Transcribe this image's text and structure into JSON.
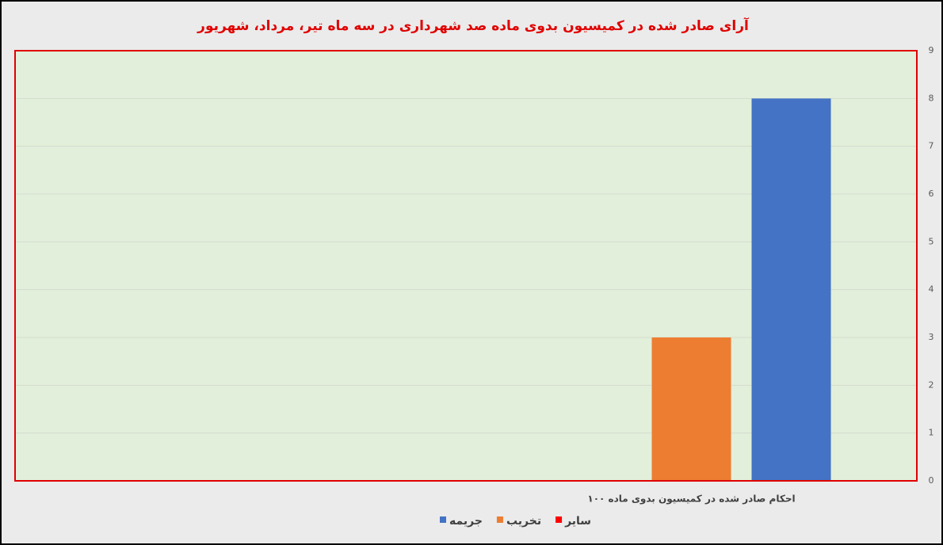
{
  "chart_data": {
    "type": "bar",
    "title": "آرای صادر شده در کمیسیون بدوی ماده صد شهرداری در سه ماه تیر، مرداد، شهریور",
    "categories": [
      null,
      "احکام صادر شده در کمیسیون بدوی ماده ۱۰۰"
    ],
    "series": [
      {
        "name": "جریمه",
        "color": "#4472c4",
        "values": [
          null,
          8
        ]
      },
      {
        "name": "تخریب",
        "color": "#ed7d31",
        "values": [
          null,
          3
        ]
      },
      {
        "name": "سایر",
        "color": "#ff0000",
        "values": [
          null,
          0
        ]
      }
    ],
    "ylim": [
      0,
      9
    ],
    "yticks": [
      0,
      1,
      2,
      3,
      4,
      5,
      6,
      7,
      8,
      9
    ],
    "grid": true
  }
}
